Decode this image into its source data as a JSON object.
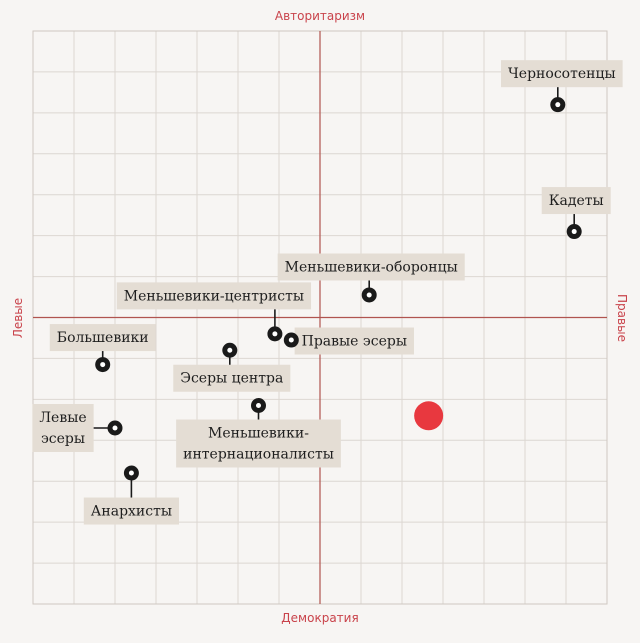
{
  "chart_data": {
    "type": "scatter",
    "xlim": [
      -7,
      7
    ],
    "ylim": [
      -7,
      7
    ],
    "grid": true,
    "axis_words": {
      "top": "Авторитаризм",
      "bottom": "Демократия",
      "left": "Левые",
      "right": "Правые"
    },
    "colors": {
      "grid": "#dcd7d2",
      "axis": "#b0544f",
      "frame": "#cfc8c1",
      "point": "#1a1a1a",
      "label_bg": "#e4ddd4",
      "highlight": "#e8383f"
    },
    "points": [
      {
        "name": "Черносотенцы",
        "lines": [
          "Черносотенцы"
        ],
        "x": 5.8,
        "y": 5.2
      },
      {
        "name": "Кадеты",
        "lines": [
          "Кадеты"
        ],
        "x": 6.2,
        "y": 2.1
      },
      {
        "name": "Меньшевики-оборонцы",
        "lines": [
          "Меньшевики-оборонцы"
        ],
        "x": 1.2,
        "y": 0.55
      },
      {
        "name": "Меньшевики-центристы",
        "lines": [
          "Меньшевики-центристы"
        ],
        "x": -1.1,
        "y": -0.4
      },
      {
        "name": "Правые эсеры",
        "lines": [
          "Правые эсеры"
        ],
        "x": -0.7,
        "y": -0.55
      },
      {
        "name": "Большевики",
        "lines": [
          "Большевики"
        ],
        "x": -5.3,
        "y": -1.15
      },
      {
        "name": "Эсеры центра",
        "lines": [
          "Эсеры центра"
        ],
        "x": -2.2,
        "y": -0.8
      },
      {
        "name": "Меньшевики-интернационалисты",
        "lines": [
          "Меньшевики-",
          "интернационалисты"
        ],
        "x": -1.5,
        "y": -2.15
      },
      {
        "name": "Левые эсеры",
        "lines": [
          "Левые",
          "эсеры"
        ],
        "x": -5.0,
        "y": -2.7
      },
      {
        "name": "Анархисты",
        "lines": [
          "Анархисты"
        ],
        "x": -4.6,
        "y": -3.8
      }
    ],
    "highlight": {
      "x": 2.65,
      "y": -2.4
    }
  }
}
